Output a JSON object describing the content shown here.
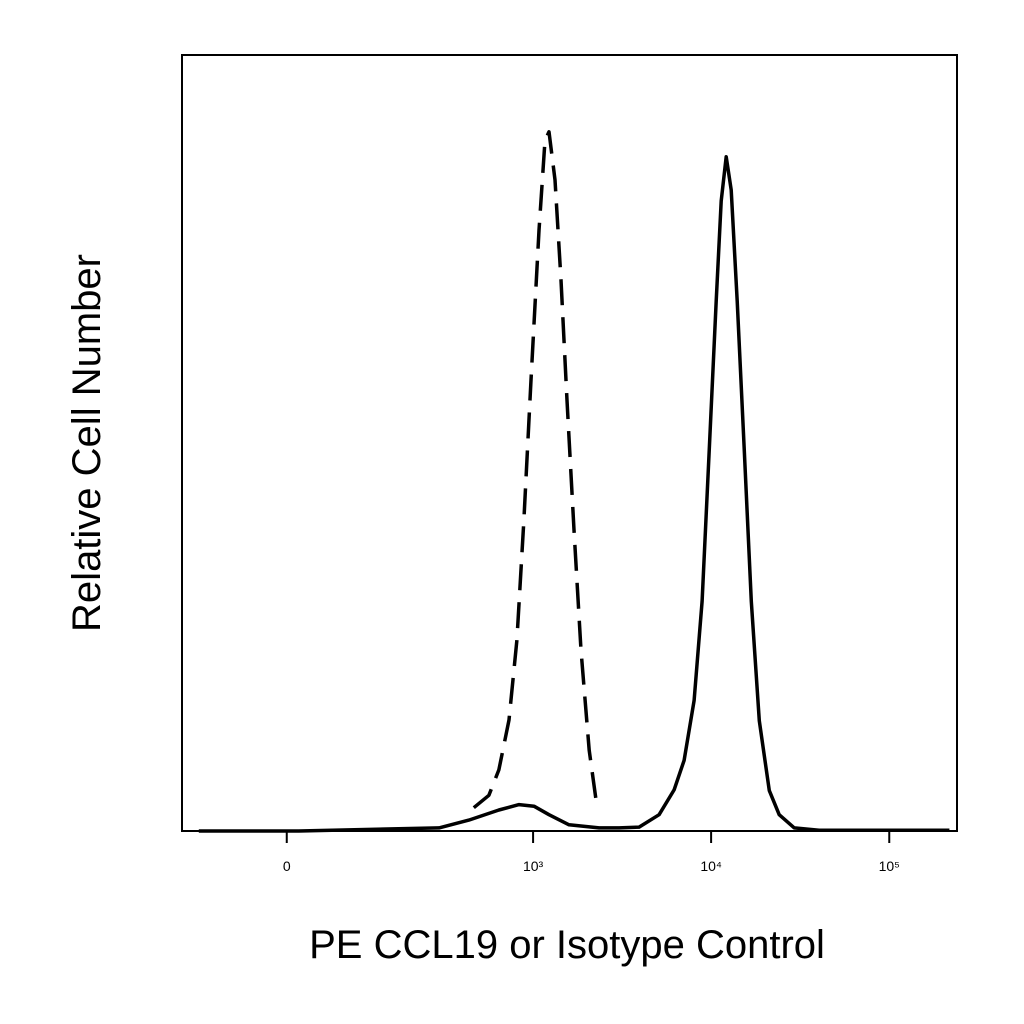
{
  "chart_data": {
    "type": "histogram-overlay",
    "x_label": "PE CCL19 or Isotype Control",
    "y_label": "Relative Cell Number",
    "xscale": "asinh",
    "asinh_cofactor": 83,
    "xlim": [
      -150,
      240000
    ],
    "ylim": [
      0,
      100
    ],
    "xticks": [
      0,
      {
        "value": 1000,
        "label": "10³"
      },
      {
        "value": 10000,
        "label": "10⁴"
      },
      {
        "value": 100000,
        "label": "10⁵"
      }
    ],
    "series": [
      {
        "color": "#000000",
        "dash": true,
        "x": [
          462,
          563,
          641,
          731,
          811,
          888,
          973,
          1079,
          1167,
          1229,
          1328,
          1436,
          1552,
          1698,
          1859,
          2067,
          2291
        ],
        "values": [
          3.0,
          4.6,
          7.9,
          14.3,
          24.6,
          40.1,
          58.1,
          77.4,
          89.0,
          90.1,
          83.9,
          71.0,
          55.5,
          38.8,
          23.3,
          10.4,
          3.0
        ]
      },
      {
        "color": "#000000",
        "dash": false,
        "x": [
          -116,
          13,
          291,
          433,
          641,
          833,
          1012,
          1229,
          1593,
          2350,
          3046,
          3944,
          5105,
          6200,
          7055,
          8026,
          8906,
          9753,
          10674,
          11396,
          12151,
          12965,
          14019,
          15347,
          16800,
          18640,
          21207,
          24120,
          29300,
          40400,
          217500
        ],
        "values": [
          0,
          0,
          0.4,
          1.4,
          2.7,
          3.4,
          3.2,
          2.1,
          0.8,
          0.4,
          0.4,
          0.5,
          2.1,
          5.3,
          9.1,
          16.8,
          29.6,
          49.0,
          68.3,
          81.2,
          86.9,
          82.6,
          68.3,
          49.0,
          29.6,
          14.2,
          5.2,
          2.1,
          0.4,
          0.1,
          0.1
        ]
      }
    ]
  }
}
